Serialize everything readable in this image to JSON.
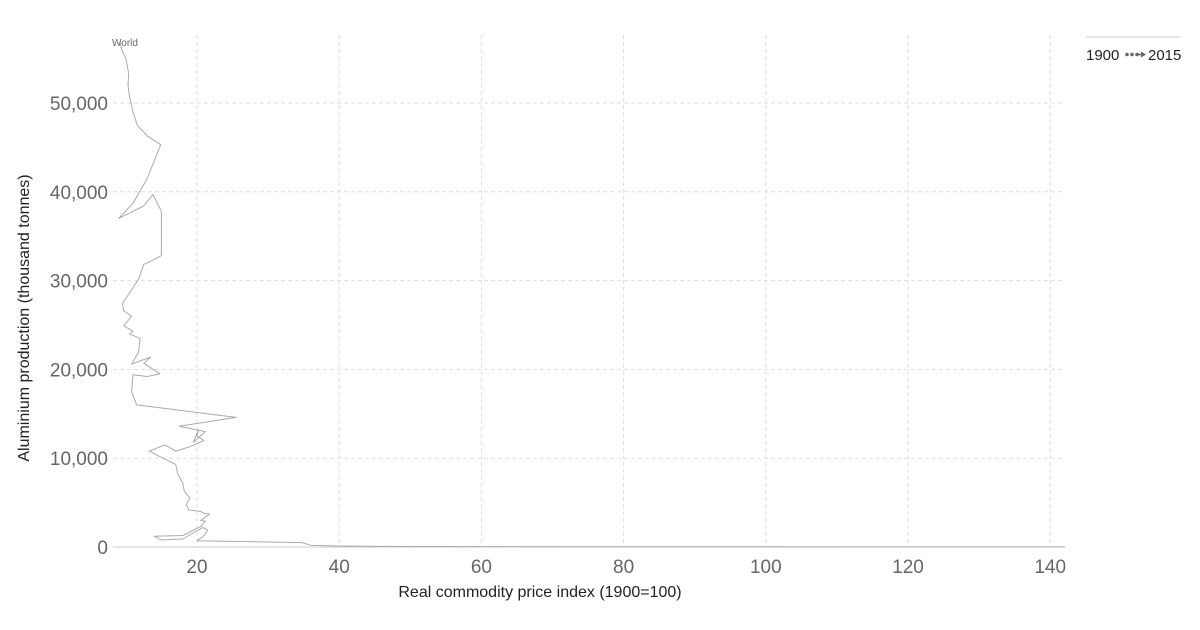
{
  "chart_data": {
    "type": "line",
    "xlabel": "Real commodity price index (1900=100)",
    "ylabel": "Aluminium production (thousand tonnes)",
    "xlim": [
      8.5,
      142
    ],
    "ylim": [
      0,
      57500
    ],
    "x_ticks": [
      20,
      40,
      60,
      80,
      100,
      120,
      140
    ],
    "y_ticks": [
      0,
      10000,
      20000,
      30000,
      40000,
      50000
    ],
    "x_tick_labels": [
      "20",
      "40",
      "60",
      "80",
      "100",
      "120",
      "140"
    ],
    "y_tick_labels": [
      "0",
      "10,000",
      "20,000",
      "30,000",
      "40,000",
      "50,000"
    ],
    "grid": true,
    "legend": {
      "start": "1900",
      "end": "2015",
      "placement": "top-right"
    },
    "series": [
      {
        "name": "World",
        "color": "#aaaaaa",
        "points": [
          [
            100,
            10
          ],
          [
            123,
            10
          ],
          [
            142,
            10
          ],
          [
            120,
            15
          ],
          [
            100,
            20
          ],
          [
            80,
            30
          ],
          [
            60,
            40
          ],
          [
            47,
            70
          ],
          [
            40,
            110
          ],
          [
            38,
            160
          ],
          [
            36,
            200
          ],
          [
            34.8,
            500
          ],
          [
            20,
            700
          ],
          [
            21,
            1300
          ],
          [
            21.5,
            1900
          ],
          [
            20.8,
            2200
          ],
          [
            18,
            900
          ],
          [
            15,
            800
          ],
          [
            14,
            1200
          ],
          [
            18,
            1300
          ],
          [
            20.5,
            2300
          ],
          [
            21.2,
            2900
          ],
          [
            20.5,
            3000
          ],
          [
            21.8,
            3700
          ],
          [
            21,
            3800
          ],
          [
            20.5,
            4000
          ],
          [
            18.8,
            4200
          ],
          [
            18.5,
            4800
          ],
          [
            19,
            5500
          ],
          [
            18.2,
            6300
          ],
          [
            18,
            7200
          ],
          [
            17.3,
            8200
          ],
          [
            17,
            9300
          ],
          [
            14.2,
            10400
          ],
          [
            13.3,
            10800
          ],
          [
            15.5,
            11500
          ],
          [
            17,
            10800
          ],
          [
            19,
            11300
          ],
          [
            21,
            12000
          ],
          [
            20,
            12500
          ],
          [
            20.2,
            13200
          ],
          [
            19.5,
            11800
          ],
          [
            21.2,
            13000
          ],
          [
            17.5,
            13600
          ],
          [
            25.5,
            14600
          ],
          [
            11.5,
            16000
          ],
          [
            10.8,
            17500
          ],
          [
            11,
            19400
          ],
          [
            13,
            19200
          ],
          [
            14.8,
            19500
          ],
          [
            12.5,
            20700
          ],
          [
            13.5,
            21400
          ],
          [
            10.8,
            20600
          ],
          [
            11.8,
            22000
          ],
          [
            12,
            23500
          ],
          [
            10.5,
            24000
          ],
          [
            11,
            24300
          ],
          [
            9.7,
            24900
          ],
          [
            10.8,
            26000
          ],
          [
            9.7,
            26600
          ],
          [
            9.5,
            27400
          ],
          [
            10,
            28000
          ],
          [
            10.5,
            28600
          ],
          [
            11.8,
            30200
          ],
          [
            12.5,
            31800
          ],
          [
            15,
            32800
          ],
          [
            15,
            33300
          ],
          [
            15,
            35800
          ],
          [
            15,
            37800
          ],
          [
            13.8,
            39700
          ],
          [
            12.5,
            38400
          ],
          [
            9,
            37000
          ],
          [
            11,
            38700
          ],
          [
            13,
            41500
          ],
          [
            14,
            43500
          ],
          [
            14.9,
            45300
          ],
          [
            13,
            46300
          ],
          [
            11.6,
            47500
          ],
          [
            11,
            49000
          ],
          [
            10.5,
            50700
          ],
          [
            10.3,
            52000
          ],
          [
            10.4,
            53300
          ],
          [
            10,
            55000
          ],
          [
            9.4,
            56000
          ],
          [
            9.2,
            56800
          ]
        ]
      }
    ],
    "annotations": [
      {
        "text": "World"
      }
    ]
  }
}
